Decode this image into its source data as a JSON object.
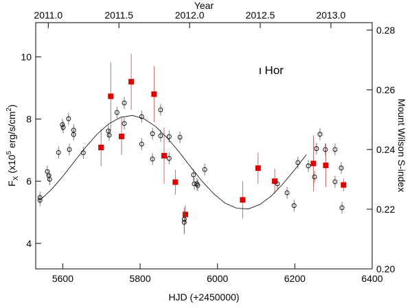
{
  "chart_data": {
    "type": "scatter",
    "title_top_axis": "Year",
    "xlabel": "HJD (+2450000)",
    "ylabel": [
      "F",
      "X",
      " (x10",
      "5",
      " erg/s/cm",
      "2",
      ")"
    ],
    "y2label": "Mount Wilson S-index",
    "annotation": "ι Hor",
    "xlim": [
      5530,
      6400
    ],
    "xticks": [
      5600,
      5800,
      6000,
      6200,
      6400
    ],
    "x2lim": [
      2010.911,
      2013.292
    ],
    "x2ticks": [
      {
        "value": 2011,
        "label": "2011.0"
      },
      2011.5,
      {
        "value": 2012,
        "label": "2012.0"
      },
      2012.5,
      {
        "value": 2013,
        "label": "2013.0"
      }
    ],
    "ylim": [
      3.18,
      11.1
    ],
    "yticks": [
      4,
      6,
      8,
      10
    ],
    "y2lim": [
      0.2,
      0.2825
    ],
    "y2ticks": [
      {
        "value": 0.2,
        "label": "0.20"
      },
      0.22,
      0.24,
      0.26,
      0.28
    ],
    "series": [
      {
        "marker": "square",
        "color": "#e00000",
        "error_color": "#c04040",
        "x": [
          5699,
          5724,
          5752,
          5777,
          5836,
          5862,
          5891,
          5917,
          6065,
          6105,
          6148,
          6248,
          6280,
          6326
        ],
        "values": [
          7.085,
          8.73,
          7.44,
          9.2,
          8.8,
          6.82,
          5.97,
          4.93,
          5.4,
          6.42,
          6.0,
          6.57,
          6.51,
          5.88
        ],
        "errors": [
          0.6,
          1.1,
          0.6,
          0.9,
          0.9,
          0.9,
          0.4,
          0.3,
          0.6,
          0.5,
          0.4,
          0.9,
          0.7,
          0.2
        ]
      },
      {
        "marker": "circle",
        "color": "#000000",
        "error_color": "#555555",
        "axis": "y2",
        "x": [
          5541,
          5541,
          5560,
          5564,
          5566,
          5589,
          5599,
          5601,
          5615,
          5617,
          5628,
          5628,
          5653,
          5718,
          5720,
          5740,
          5759,
          5759,
          5804,
          5804,
          5832,
          5832,
          5853,
          5853,
          5875,
          5875,
          5903,
          5914,
          5914,
          5938,
          5940,
          5947,
          5949,
          5967,
          6155,
          6180,
          6198,
          6208,
          6235,
          6251,
          6256,
          6265,
          6279,
          6304,
          6304,
          6320,
          6322
        ],
        "values": [
          0.2239,
          0.223,
          0.2326,
          0.2313,
          0.23,
          0.239,
          0.2483,
          0.2474,
          0.2503,
          0.24,
          0.2465,
          0.245,
          0.2389,
          0.2462,
          0.2448,
          0.2524,
          0.2556,
          0.2487,
          0.251,
          0.2418,
          0.2453,
          0.2368,
          0.2533,
          0.2446,
          0.2443,
          0.237,
          0.2441,
          0.2166,
          0.2156,
          0.2315,
          0.2285,
          0.2285,
          0.228,
          0.2333,
          0.2285,
          0.2255,
          0.2212,
          0.2356,
          0.2345,
          0.2308,
          0.2403,
          0.2451,
          0.24,
          0.24,
          0.2292,
          0.2338,
          0.2205
        ],
        "errors": [
          0.002,
          0.002,
          0.002,
          0.002,
          0.002,
          0.002,
          0.002,
          0.002,
          0.002,
          0.002,
          0.002,
          0.002,
          0.002,
          0.002,
          0.002,
          0.002,
          0.002,
          0.002,
          0.002,
          0.002,
          0.002,
          0.002,
          0.002,
          0.002,
          0.002,
          0.002,
          0.002,
          0.004,
          0.004,
          0.002,
          0.002,
          0.002,
          0.002,
          0.002,
          0.002,
          0.002,
          0.002,
          0.002,
          0.002,
          0.002,
          0.002,
          0.002,
          0.002,
          0.002,
          0.002,
          0.002,
          0.002
        ]
      },
      {
        "marker": "line",
        "color": "#000000",
        "axis": "y2",
        "x": [
          5540,
          5570,
          5600,
          5630,
          5660,
          5690,
          5720,
          5750,
          5780,
          5810,
          5840,
          5870,
          5900,
          5930,
          5960,
          5990,
          6020,
          6050,
          6080,
          6110,
          6140,
          6170,
          6200,
          6230
        ],
        "values": [
          0.2229,
          0.2265,
          0.231,
          0.236,
          0.2409,
          0.2453,
          0.2487,
          0.2508,
          0.2514,
          0.2503,
          0.2477,
          0.2439,
          0.2393,
          0.2343,
          0.2294,
          0.2252,
          0.222,
          0.2203,
          0.2201,
          0.2216,
          0.2245,
          0.2286,
          0.2333,
          0.2383
        ]
      }
    ]
  }
}
